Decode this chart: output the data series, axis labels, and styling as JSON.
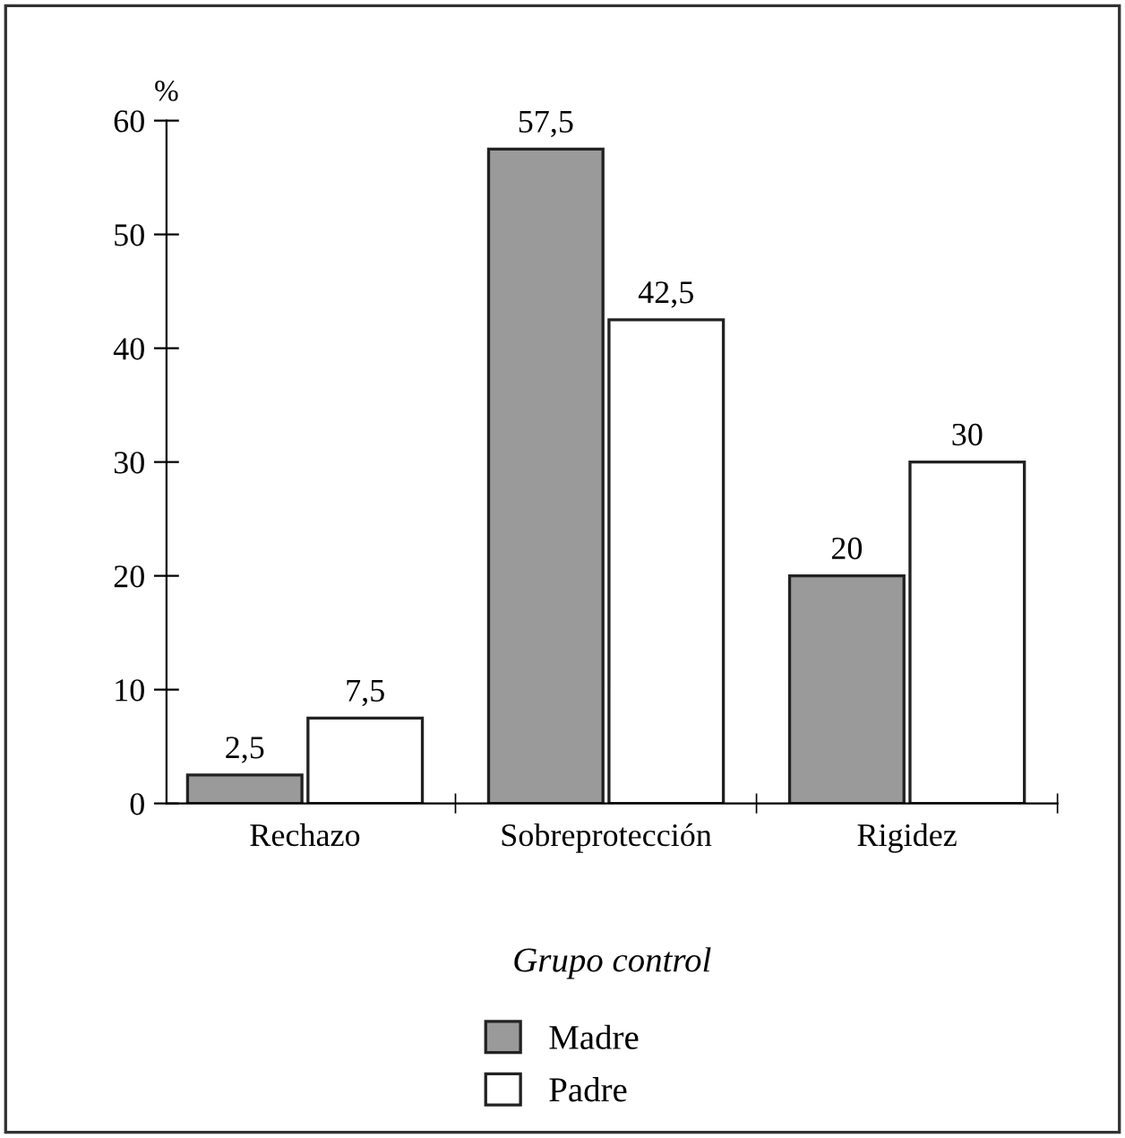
{
  "chart_data": {
    "type": "bar",
    "xlabel": "Grupo control",
    "ylabel": "%",
    "categories": [
      "Rechazo",
      "Sobreprotección",
      "Rigidez"
    ],
    "series": [
      {
        "name": "Madre",
        "color": "#9a9a9a",
        "values": [
          2.5,
          57.5,
          20
        ],
        "value_labels": [
          "2,5",
          "57,5",
          "20"
        ]
      },
      {
        "name": "Padre",
        "color": "#ffffff",
        "values": [
          7.5,
          42.5,
          30
        ],
        "value_labels": [
          "7,5",
          "42,5",
          "30"
        ]
      }
    ],
    "ylim": [
      0,
      60
    ],
    "yticks": [
      0,
      10,
      20,
      30,
      40,
      50,
      60
    ],
    "grid": false,
    "legend": "bottom"
  }
}
